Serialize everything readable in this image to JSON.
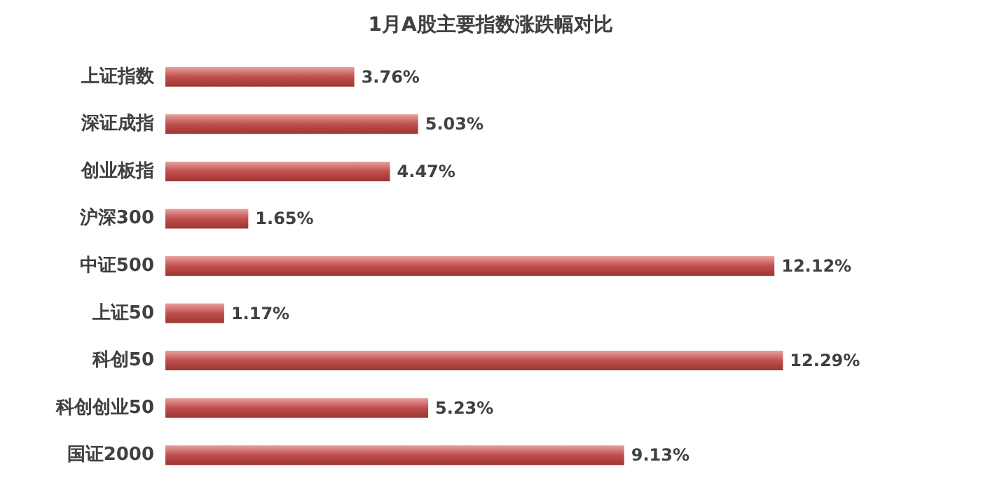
{
  "chart_data": {
    "type": "bar",
    "orientation": "horizontal",
    "title": "1月A股主要指数涨跌幅对比",
    "categories": [
      "上证指数",
      "深证成指",
      "创业板指",
      "沪深300",
      "中证500",
      "上证50",
      "科创50",
      "科创创业50",
      "国证2000"
    ],
    "values": [
      3.76,
      5.03,
      4.47,
      1.65,
      12.12,
      1.17,
      12.29,
      5.23,
      9.13
    ],
    "value_labels": [
      "3.76%",
      "5.03%",
      "4.47%",
      "1.65%",
      "12.12%",
      "1.17%",
      "12.29%",
      "5.23%",
      "9.13%"
    ],
    "color": "#c0504d"
  }
}
